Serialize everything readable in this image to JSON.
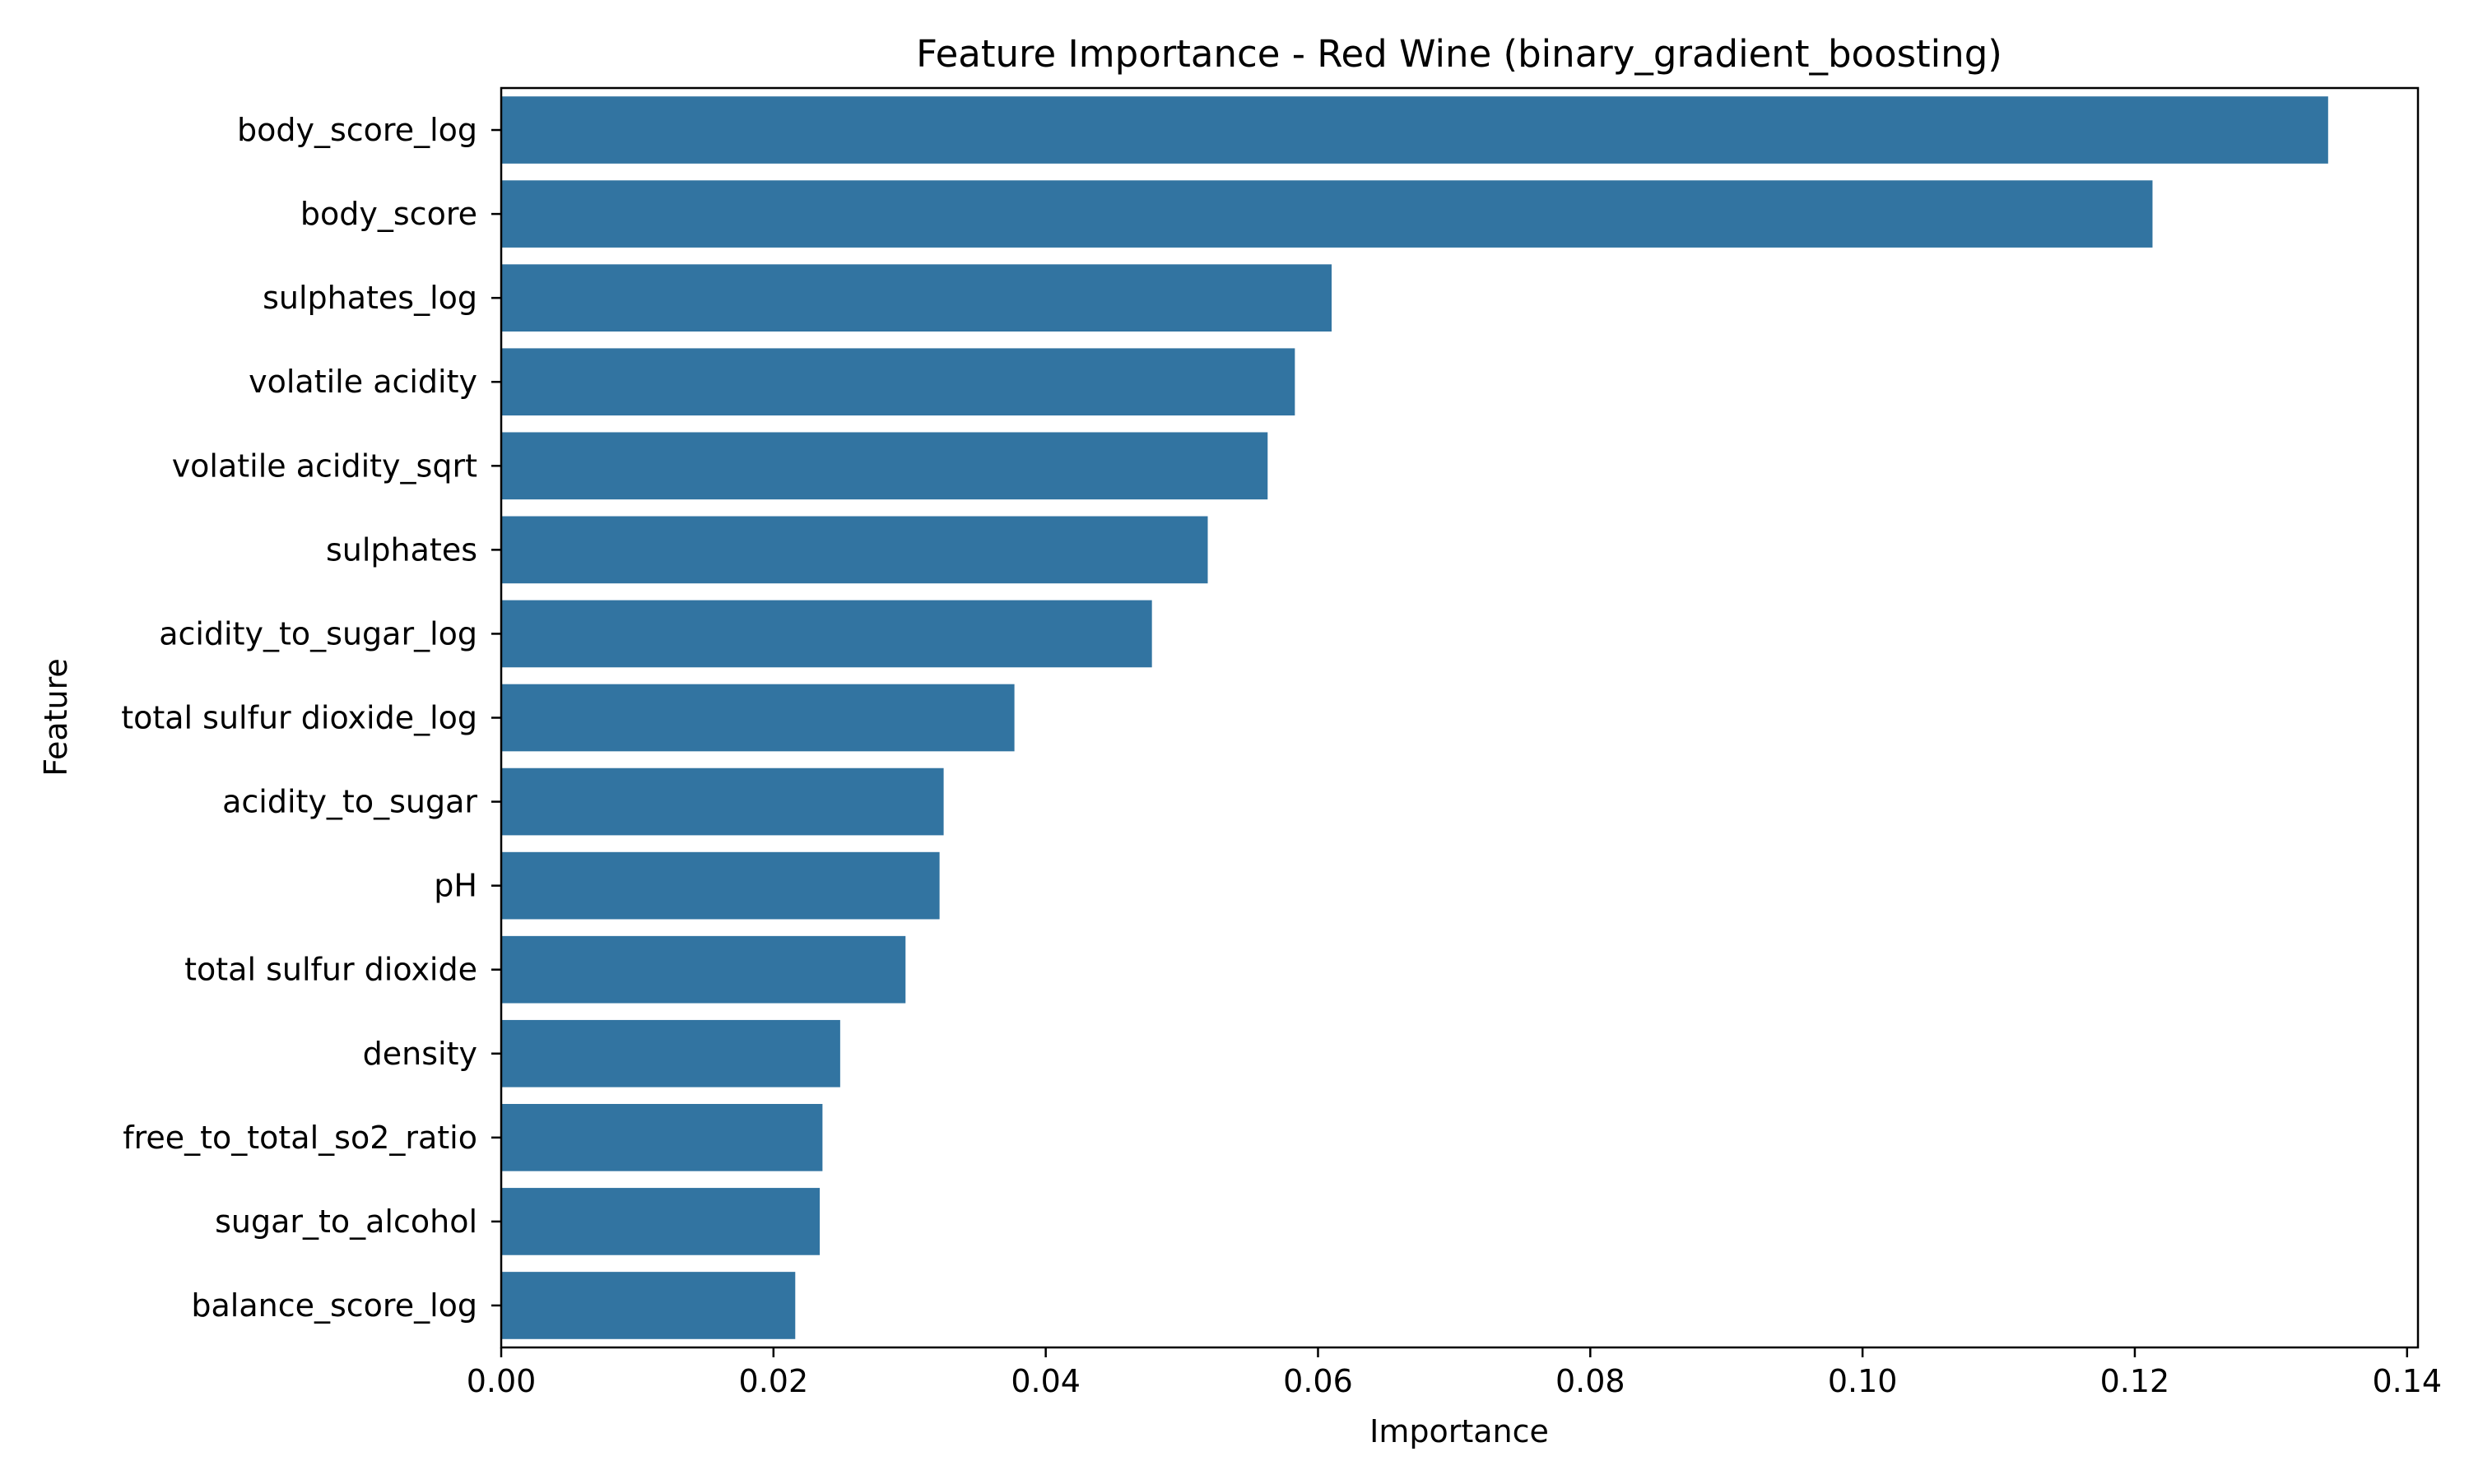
{
  "chart_data": {
    "type": "bar",
    "orientation": "horizontal",
    "title": "Feature Importance - Red Wine (binary_gradient_boosting)",
    "xlabel": "Importance",
    "ylabel": "Feature",
    "categories": [
      "body_score_log",
      "body_score",
      "sulphates_log",
      "volatile acidity",
      "volatile acidity_sqrt",
      "sulphates",
      "acidity_to_sugar_log",
      "total sulfur dioxide_log",
      "acidity_to_sugar",
      "pH",
      "total sulfur dioxide",
      "density",
      "free_to_total_so2_ratio",
      "sugar_to_alcohol",
      "balance_score_log"
    ],
    "values": [
      0.1342,
      0.1213,
      0.061,
      0.0583,
      0.0563,
      0.0519,
      0.0478,
      0.0377,
      0.0325,
      0.0322,
      0.0297,
      0.0249,
      0.0236,
      0.0234,
      0.0216
    ],
    "xlim": [
      0,
      0.1408
    ],
    "xticks": [
      0.0,
      0.02,
      0.04,
      0.06,
      0.08,
      0.1,
      0.12,
      0.14
    ],
    "xtick_labels": [
      "0.00",
      "0.02",
      "0.04",
      "0.06",
      "0.08",
      "0.10",
      "0.12",
      "0.14"
    ],
    "bar_color": "#3274a1",
    "grid": false,
    "legend": "none"
  }
}
